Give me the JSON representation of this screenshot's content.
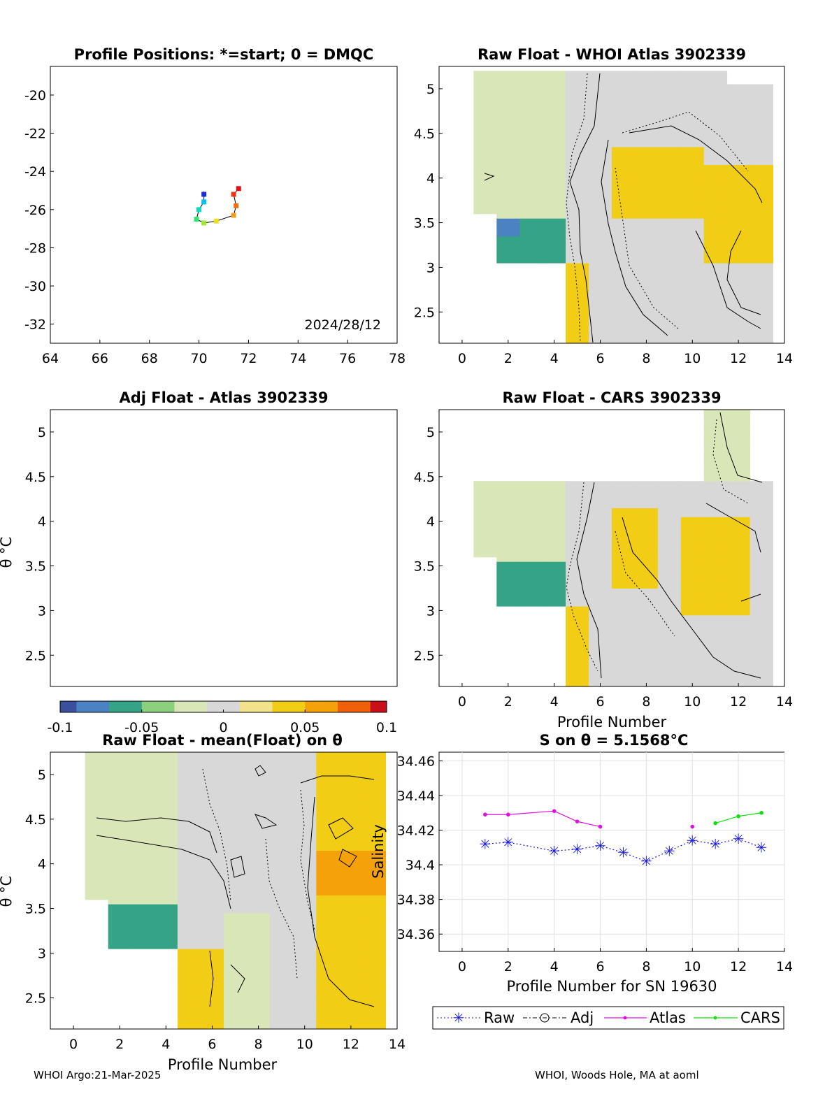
{
  "panels": {
    "positions": {
      "title": "Profile Positions: *=start; 0 = DMQC",
      "date_label": "2024/28/12",
      "xticks": [
        "64",
        "66",
        "68",
        "70",
        "72",
        "74",
        "76",
        "78"
      ],
      "yticks": [
        "-20",
        "-22",
        "-24",
        "-26",
        "-28",
        "-30",
        "-32"
      ]
    },
    "raw_atlas": {
      "title": "Raw Float - WHOI Atlas  3902339"
    },
    "adj_atlas": {
      "title": "Adj Float - Atlas  3902339",
      "ylabel": "θ °C"
    },
    "raw_cars": {
      "title": "Raw Float - CARS  3902339",
      "xlabel": "Profile Number"
    },
    "raw_mean": {
      "title": "Raw Float - mean(Float) on θ",
      "ylabel": "θ °C",
      "xlabel": "Profile Number"
    },
    "salinity": {
      "title": "S on θ = 5.1568°C",
      "ylabel": "Salinity",
      "xlabel": "Profile Number for SN 19630"
    }
  },
  "theta_yticks": [
    "5",
    "4.5",
    "4",
    "3.5",
    "3",
    "2.5"
  ],
  "profile_xticks": [
    "0",
    "2",
    "4",
    "6",
    "8",
    "10",
    "12",
    "14"
  ],
  "salinity_yticks": [
    "34.46",
    "34.44",
    "34.42",
    "34.4",
    "34.38",
    "34.36"
  ],
  "colorbar": {
    "ticks": [
      "-0.1",
      "-0.05",
      "0",
      "0.05",
      "0.1"
    ],
    "range": [
      -0.1,
      0.1
    ],
    "colors": [
      "#3a4f9e",
      "#4b82c2",
      "#35a386",
      "#8ccf7c",
      "#d8e6b8",
      "#d8d8d8",
      "#f2e38a",
      "#f2cd15",
      "#f5a10a",
      "#f0600a",
      "#c8101a"
    ]
  },
  "legend": {
    "raw": "Raw",
    "adj": "Adj",
    "atlas": "Atlas",
    "cars": "CARS"
  },
  "footer": {
    "left": "WHOI Argo:21-Mar-2025",
    "right": "WHOI, Woods Hole, MA at aoml"
  },
  "chart_data": [
    {
      "type": "scatter",
      "title": "Profile Positions: *=start; 0 = DMQC",
      "xlim": [
        64,
        78
      ],
      "ylim": [
        -33,
        -18.5
      ],
      "x": [
        70.2,
        70.2,
        70.0,
        69.9,
        70.2,
        70.7,
        71.4,
        71.5,
        71.4,
        71.6
      ],
      "y": [
        -25.2,
        -25.6,
        -26.0,
        -26.5,
        -26.7,
        -26.6,
        -26.3,
        -25.8,
        -25.2,
        -24.9
      ],
      "colors": [
        "#1a2fd6",
        "#00c0f0",
        "#00e0c0",
        "#30e870",
        "#a0e830",
        "#e8e020",
        "#f0a020",
        "#f07010",
        "#f03010",
        "#e01010"
      ],
      "annotation": "2024/28/12",
      "grid": false
    },
    {
      "type": "heatmap",
      "title": "Raw Float - WHOI Atlas  3902339",
      "xlim": [
        -1,
        14
      ],
      "ylim": [
        2.15,
        5.25
      ],
      "x": [
        1,
        2,
        3,
        4,
        5,
        6,
        7,
        8,
        9,
        10,
        11,
        12,
        13
      ],
      "y_top": [
        5.2,
        5.2,
        5.2,
        5.2,
        5.2,
        5.2,
        5.2,
        5.2,
        5.2,
        5.2,
        5.2,
        5.05,
        5.05
      ],
      "y_bottom": [
        3.6,
        3.05,
        3.05,
        3.05,
        2.15,
        2.15,
        2.15,
        2.15,
        2.15,
        2.15,
        2.15,
        2.15,
        2.15
      ],
      "colorbar_range": [
        -0.1,
        0.1
      ],
      "grid": false
    },
    {
      "type": "heatmap",
      "title": "Adj Float - Atlas  3902339",
      "xlim": [
        -1,
        14
      ],
      "ylim": [
        2.15,
        5.25
      ],
      "ylabel": "θ °C",
      "empty": true
    },
    {
      "type": "heatmap",
      "title": "Raw Float - CARS  3902339",
      "xlim": [
        -1,
        14
      ],
      "ylim": [
        2.15,
        5.25
      ],
      "xlabel": "Profile Number",
      "x": [
        1,
        2,
        3,
        4,
        5,
        6,
        7,
        8,
        9,
        10,
        11,
        12,
        13
      ],
      "y_top": [
        4.45,
        4.45,
        4.45,
        4.45,
        4.45,
        4.45,
        4.45,
        4.45,
        4.45,
        4.45,
        5.25,
        5.25,
        4.45
      ],
      "y_bottom": [
        3.6,
        3.05,
        3.05,
        3.05,
        2.15,
        2.15,
        2.15,
        2.15,
        2.15,
        2.15,
        2.15,
        2.15,
        2.15
      ],
      "colorbar_range": [
        -0.1,
        0.1
      ]
    },
    {
      "type": "heatmap",
      "title": "Raw Float - mean(Float) on θ",
      "xlim": [
        -1,
        14
      ],
      "ylim": [
        2.15,
        5.25
      ],
      "ylabel": "θ °C",
      "xlabel": "Profile Number",
      "x": [
        1,
        2,
        3,
        4,
        5,
        6,
        7,
        8,
        9,
        10,
        11,
        12,
        13
      ],
      "y_top": [
        5.25,
        5.25,
        5.25,
        5.25,
        5.25,
        5.25,
        5.25,
        5.25,
        5.25,
        5.25,
        5.25,
        5.25,
        5.25
      ],
      "y_bottom": [
        3.6,
        3.05,
        3.05,
        3.05,
        2.15,
        2.15,
        2.15,
        2.15,
        2.15,
        2.15,
        2.15,
        2.15,
        2.15
      ],
      "colorbar_range": [
        -0.1,
        0.1
      ]
    },
    {
      "type": "line",
      "title": "S on θ = 5.1568°C",
      "xlabel": "Profile Number for SN 19630",
      "ylabel": "Salinity",
      "xlim": [
        -1,
        14
      ],
      "ylim": [
        34.35,
        34.465
      ],
      "grid": true,
      "legend_position": "bottom",
      "series": [
        {
          "name": "Raw",
          "color": "#1a1ae0",
          "style": "dotted-star",
          "x": [
            1,
            2,
            4,
            5,
            6,
            7,
            8,
            9,
            10,
            11,
            12,
            13
          ],
          "y": [
            34.412,
            34.413,
            34.408,
            34.409,
            34.411,
            34.407,
            34.402,
            34.408,
            34.414,
            34.412,
            34.415,
            34.41
          ]
        },
        {
          "name": "Atlas",
          "color": "#e010e0",
          "style": "solid-dot",
          "segments": [
            {
              "x": [
                1,
                2,
                4,
                5,
                6
              ],
              "y": [
                34.429,
                34.429,
                34.431,
                34.425,
                34.422
              ]
            },
            {
              "x": [
                10
              ],
              "y": [
                34.422
              ]
            }
          ]
        },
        {
          "name": "CARS",
          "color": "#10e010",
          "style": "solid-dot",
          "segments": [
            {
              "x": [
                11,
                12,
                13
              ],
              "y": [
                34.424,
                34.428,
                34.43
              ]
            }
          ]
        },
        {
          "name": "Adj",
          "color": "#000000",
          "style": "dashdot-circle",
          "x": [],
          "y": []
        }
      ]
    }
  ]
}
